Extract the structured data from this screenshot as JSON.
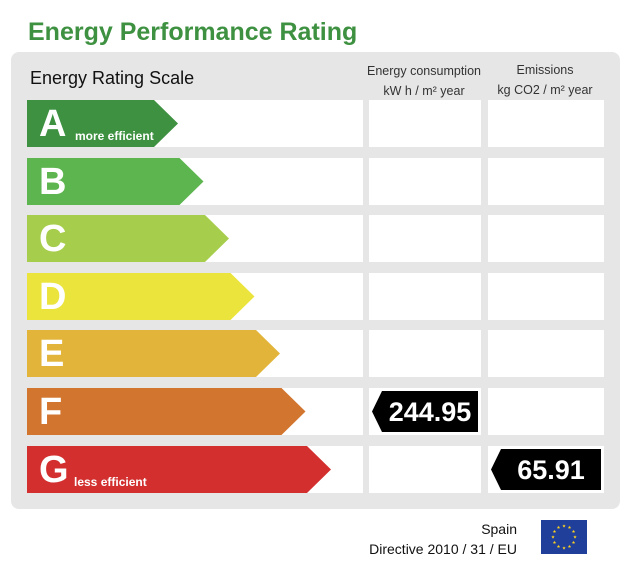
{
  "title": "Energy Performance Rating",
  "scale_label": "Energy Rating Scale",
  "columns": {
    "consumption": {
      "line1": "Energy consumption",
      "line2": "kW h / m² year"
    },
    "emissions": {
      "line1": "Emissions",
      "line2": "kg CO2 / m² year"
    }
  },
  "ratings": [
    {
      "letter": "A",
      "note": "more efficient",
      "color": "#3d9140"
    },
    {
      "letter": "B",
      "note": "",
      "color": "#5cb54e"
    },
    {
      "letter": "C",
      "note": "",
      "color": "#a7cd4c"
    },
    {
      "letter": "D",
      "note": "",
      "color": "#ebe43d"
    },
    {
      "letter": "E",
      "note": "",
      "color": "#e2b53a"
    },
    {
      "letter": "F",
      "note": "",
      "color": "#d2752f"
    },
    {
      "letter": "G",
      "note": "less efficient",
      "color": "#d32f2f"
    }
  ],
  "values": {
    "consumption": {
      "rating": "F",
      "value": "244.95"
    },
    "emissions": {
      "rating": "G",
      "value": "65.91"
    }
  },
  "footer": {
    "country": "Spain",
    "directive": "Directive 2010 / 31 / EU"
  },
  "colors": {
    "title": "#3d9140",
    "panel": "#e6e6e6",
    "eu_blue": "#1f3f9a",
    "eu_star": "#ffd21f"
  }
}
